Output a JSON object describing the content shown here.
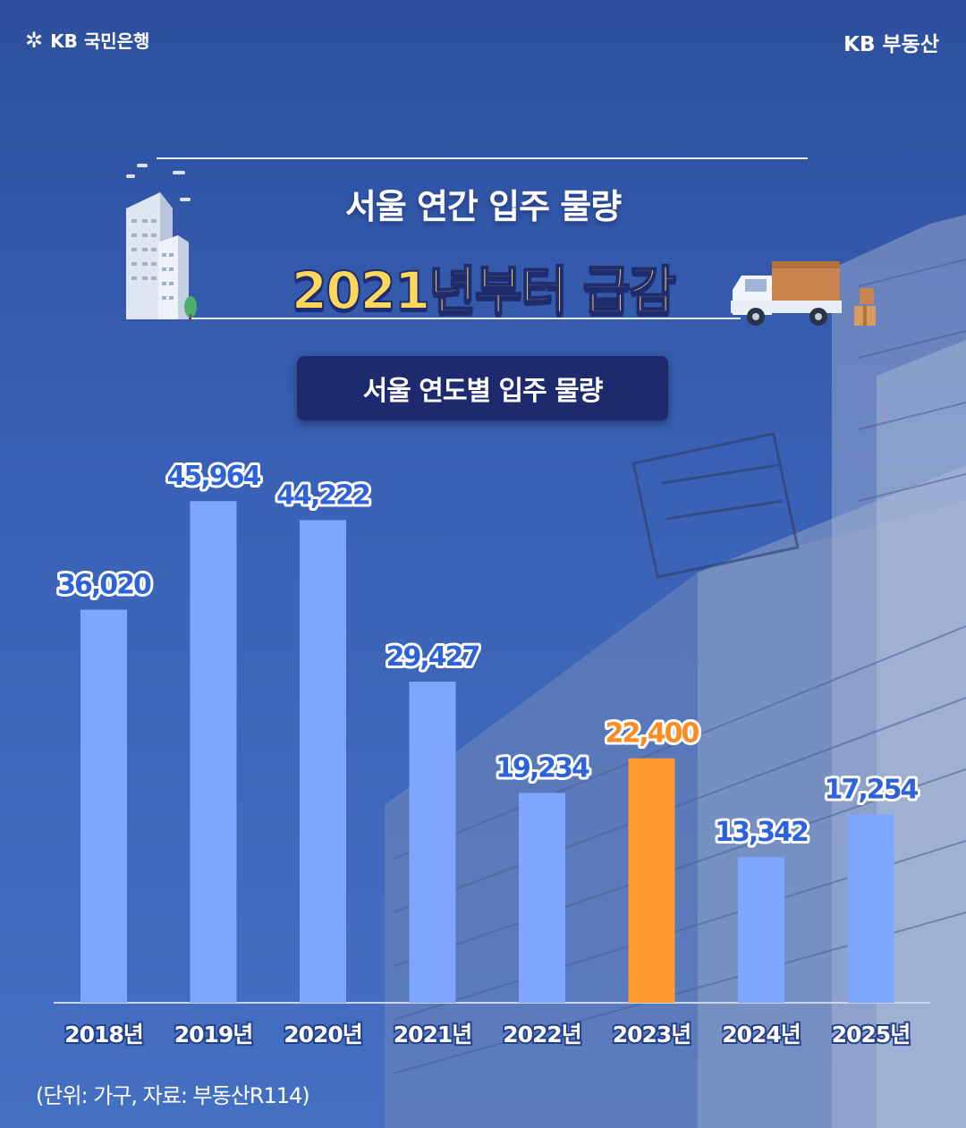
{
  "header": {
    "bank_logo_icon": "kb-star-icon",
    "bank_name": "KB 국민은행",
    "brand_right": "KB 부동산"
  },
  "title": {
    "line1": "서울 연간 입주 물량",
    "line2": "2021년부터 급감"
  },
  "subtitle": "서울 연도별 입주 물량",
  "source_note": "(단위: 가구, 자료: 부동산R114)",
  "colors": {
    "bar_default": "#7fa6ff",
    "bar_highlight": "#ff9a32",
    "label_default": "#2e62d9",
    "label_highlight": "#ff8a1f",
    "title_highlight": "#ffd75a",
    "title_box": "#1e2a6e"
  },
  "chart_data": {
    "type": "bar",
    "title": "서울 연도별 입주 물량",
    "categories": [
      "2018년",
      "2019년",
      "2020년",
      "2021년",
      "2022년",
      "2023년",
      "2024년",
      "2025년"
    ],
    "values": [
      36020,
      45964,
      44222,
      29427,
      19234,
      22400,
      13342,
      17254
    ],
    "value_labels": [
      "36,020",
      "45,964",
      "44,222",
      "29,427",
      "19,234",
      "22,400",
      "13,342",
      "17,254"
    ],
    "highlight_index": 5,
    "unit": "가구",
    "ylim": [
      0,
      50000
    ],
    "grid": false,
    "legend": "none"
  },
  "icons": {
    "buildings": "apartment-buildings-icon",
    "truck": "moving-truck-icon",
    "boxes": "boxes-icon"
  }
}
